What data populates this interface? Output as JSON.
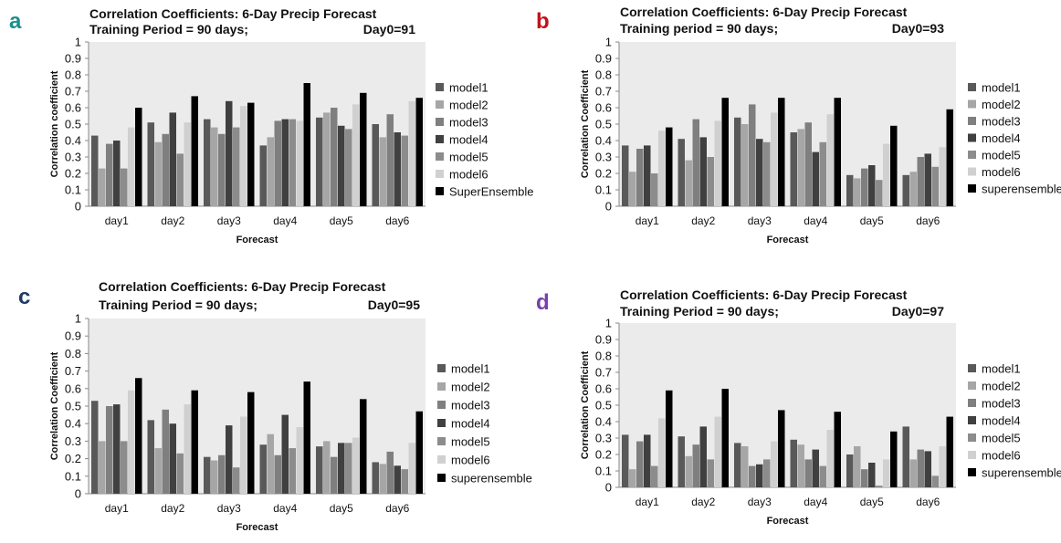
{
  "chart_data": [
    {
      "panel": "a",
      "type": "bar",
      "title": "Correlation Coefficients: 6-Day Precip Forecast",
      "subtitle_left": "Training Period = 90 days;",
      "subtitle_right": "Day0=91",
      "xlabel": "Forecast",
      "ylabel": "Correlation coefficient",
      "ylim": [
        0,
        1
      ],
      "yticks": [
        "1",
        "0.9",
        "0.8",
        "0.7",
        "0.6",
        "0.5",
        "0.4",
        "0.3",
        "0.2",
        "0.1",
        "0"
      ],
      "categories": [
        "day1",
        "day2",
        "day3",
        "day4",
        "day5",
        "day6"
      ],
      "series": [
        {
          "name": "model1",
          "values": [
            0.43,
            0.51,
            0.53,
            0.37,
            0.54,
            0.5
          ]
        },
        {
          "name": "model2",
          "values": [
            0.23,
            0.39,
            0.48,
            0.42,
            0.57,
            0.42
          ]
        },
        {
          "name": "model3",
          "values": [
            0.38,
            0.44,
            0.44,
            0.52,
            0.6,
            0.56
          ]
        },
        {
          "name": "model4",
          "values": [
            0.4,
            0.57,
            0.64,
            0.53,
            0.49,
            0.45
          ]
        },
        {
          "name": "model5",
          "values": [
            0.23,
            0.32,
            0.48,
            0.53,
            0.47,
            0.43
          ]
        },
        {
          "name": "model6",
          "values": [
            0.48,
            0.51,
            0.61,
            0.52,
            0.62,
            0.64
          ]
        },
        {
          "name": "SuperEnsemble",
          "values": [
            0.6,
            0.67,
            0.63,
            0.75,
            0.69,
            0.66
          ]
        }
      ]
    },
    {
      "panel": "b",
      "type": "bar",
      "title": "Correlation Coefficients: 6-Day Precip Forecast",
      "subtitle_left": "Training period = 90 days;",
      "subtitle_right": "Day0=93",
      "xlabel": "Forecast",
      "ylabel": "Correlation Coefficient",
      "ylim": [
        0,
        1
      ],
      "yticks": [
        "1",
        "0.9",
        "0.8",
        "0.7",
        "0.6",
        "0.5",
        "0.4",
        "0.3",
        "0.2",
        "0.1",
        "0"
      ],
      "categories": [
        "day1",
        "day2",
        "day3",
        "day4",
        "day5",
        "day6"
      ],
      "series": [
        {
          "name": "model1",
          "values": [
            0.37,
            0.41,
            0.54,
            0.45,
            0.19,
            0.19
          ]
        },
        {
          "name": "model2",
          "values": [
            0.21,
            0.28,
            0.5,
            0.47,
            0.17,
            0.21
          ]
        },
        {
          "name": "model3",
          "values": [
            0.35,
            0.53,
            0.62,
            0.51,
            0.23,
            0.3
          ]
        },
        {
          "name": "model4",
          "values": [
            0.37,
            0.42,
            0.41,
            0.33,
            0.25,
            0.32
          ]
        },
        {
          "name": "model5",
          "values": [
            0.2,
            0.3,
            0.39,
            0.39,
            0.16,
            0.24
          ]
        },
        {
          "name": "model6",
          "values": [
            0.46,
            0.52,
            0.57,
            0.56,
            0.38,
            0.36
          ]
        },
        {
          "name": "superensemble",
          "values": [
            0.48,
            0.66,
            0.66,
            0.66,
            0.49,
            0.59
          ]
        }
      ]
    },
    {
      "panel": "c",
      "type": "bar",
      "title": "Correlation Coefficients: 6-Day Precip Forecast",
      "subtitle_left": "Training Period = 90 days;",
      "subtitle_right": "Day0=95",
      "xlabel": "Forecast",
      "ylabel": "Correlation Coefficient",
      "ylim": [
        0,
        1
      ],
      "yticks": [
        "1",
        "0.9",
        "0.8",
        "0.7",
        "0.6",
        "0.5",
        "0.4",
        "0.3",
        "0.2",
        "0.1",
        "0"
      ],
      "categories": [
        "day1",
        "day2",
        "day3",
        "day4",
        "day5",
        "day6"
      ],
      "series": [
        {
          "name": "model1",
          "values": [
            0.53,
            0.42,
            0.21,
            0.28,
            0.27,
            0.18
          ]
        },
        {
          "name": "model2",
          "values": [
            0.3,
            0.26,
            0.19,
            0.34,
            0.3,
            0.17
          ]
        },
        {
          "name": "model3",
          "values": [
            0.5,
            0.48,
            0.22,
            0.22,
            0.21,
            0.24
          ]
        },
        {
          "name": "model4",
          "values": [
            0.51,
            0.4,
            0.39,
            0.45,
            0.29,
            0.16
          ]
        },
        {
          "name": "model5",
          "values": [
            0.3,
            0.23,
            0.15,
            0.26,
            0.29,
            0.14
          ]
        },
        {
          "name": "model6",
          "values": [
            0.59,
            0.51,
            0.44,
            0.38,
            0.32,
            0.29
          ]
        },
        {
          "name": "superensemble",
          "values": [
            0.66,
            0.59,
            0.58,
            0.64,
            0.54,
            0.47
          ]
        }
      ]
    },
    {
      "panel": "d",
      "type": "bar",
      "title": "Correlation Coefficients: 6-Day Precip Forecast",
      "subtitle_left": "Training Period = 90 days;",
      "subtitle_right": "Day0=97",
      "xlabel": "Forecast",
      "ylabel": "Correlation Coefficient",
      "ylim": [
        0,
        1
      ],
      "yticks": [
        "1",
        "0.9",
        "0.8",
        "0.7",
        "0.6",
        "0.5",
        "0.4",
        "0.3",
        "0.2",
        "0.1",
        "0"
      ],
      "categories": [
        "day1",
        "day2",
        "day3",
        "day4",
        "day5",
        "day6"
      ],
      "series": [
        {
          "name": "model1",
          "values": [
            0.32,
            0.31,
            0.27,
            0.29,
            0.2,
            0.37
          ]
        },
        {
          "name": "model2",
          "values": [
            0.11,
            0.19,
            0.25,
            0.26,
            0.25,
            0.17
          ]
        },
        {
          "name": "model3",
          "values": [
            0.28,
            0.26,
            0.13,
            0.17,
            0.11,
            0.23
          ]
        },
        {
          "name": "model4",
          "values": [
            0.32,
            0.37,
            0.14,
            0.23,
            0.15,
            0.22
          ]
        },
        {
          "name": "model5",
          "values": [
            0.13,
            0.17,
            0.17,
            0.13,
            0.01,
            0.07
          ]
        },
        {
          "name": "model6",
          "values": [
            0.42,
            0.43,
            0.28,
            0.35,
            0.17,
            0.25
          ]
        },
        {
          "name": "superensemble",
          "values": [
            0.59,
            0.6,
            0.47,
            0.46,
            0.34,
            0.43
          ]
        }
      ]
    }
  ],
  "panel_letters": [
    {
      "text": "a",
      "color": "#1a8f8f"
    },
    {
      "text": "b",
      "color": "#c0141c"
    },
    {
      "text": "c",
      "color": "#1f3a64"
    },
    {
      "text": "d",
      "color": "#7a3fa8"
    }
  ],
  "series_colors": [
    "#595959",
    "#a6a6a6",
    "#7f7f7f",
    "#404040",
    "#8c8c8c",
    "#d0d0d0",
    "#000000"
  ],
  "plot_background": "#ebebeb"
}
